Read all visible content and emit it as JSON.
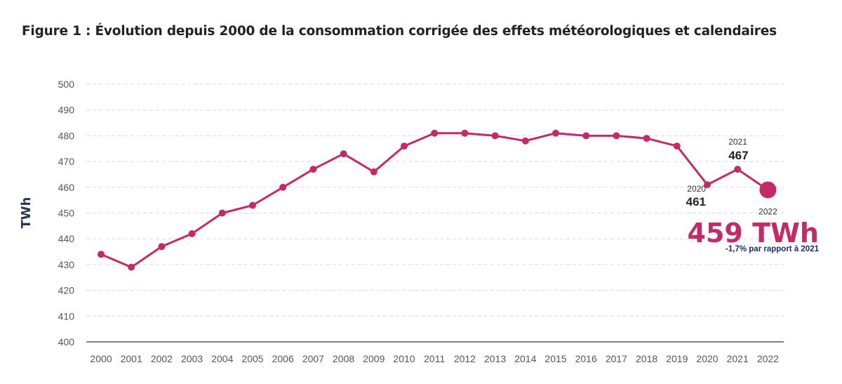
{
  "title": "Figure 1 : Évolution depuis 2000 de la consommation corrigée des effets météorologiques et calendaires",
  "colors": {
    "line": "#c22a68",
    "axis": "#2a3a4e",
    "grid": "#d9d9d9",
    "note": "#1f2a6b"
  },
  "chart_data": {
    "type": "line",
    "title": "Figure 1 : Évolution depuis 2000 de la consommation corrigée des effets météorologiques et calendaires",
    "ylabel": "TWh",
    "xlabel": "",
    "ylim": [
      400,
      500
    ],
    "yticks": [
      400,
      410,
      420,
      430,
      440,
      450,
      460,
      470,
      480,
      490,
      500
    ],
    "grid": true,
    "x": [
      "2000",
      "2001",
      "2002",
      "2003",
      "2004",
      "2005",
      "2006",
      "2007",
      "2008",
      "2009",
      "2010",
      "2011",
      "2012",
      "2013",
      "2014",
      "2015",
      "2016",
      "2017",
      "2018",
      "2019",
      "2020",
      "2021",
      "2022"
    ],
    "values": [
      434,
      429,
      437,
      442,
      450,
      453,
      460,
      467,
      473,
      466,
      476,
      481,
      481,
      480,
      478,
      481,
      480,
      480,
      479,
      476,
      461,
      467,
      459
    ],
    "annotations": [
      {
        "year": "2020",
        "value": "461"
      },
      {
        "year": "2021",
        "value": "467"
      },
      {
        "year": "2022",
        "value": "459 TWh",
        "note": "-1,7% par rapport à 2021"
      }
    ]
  }
}
